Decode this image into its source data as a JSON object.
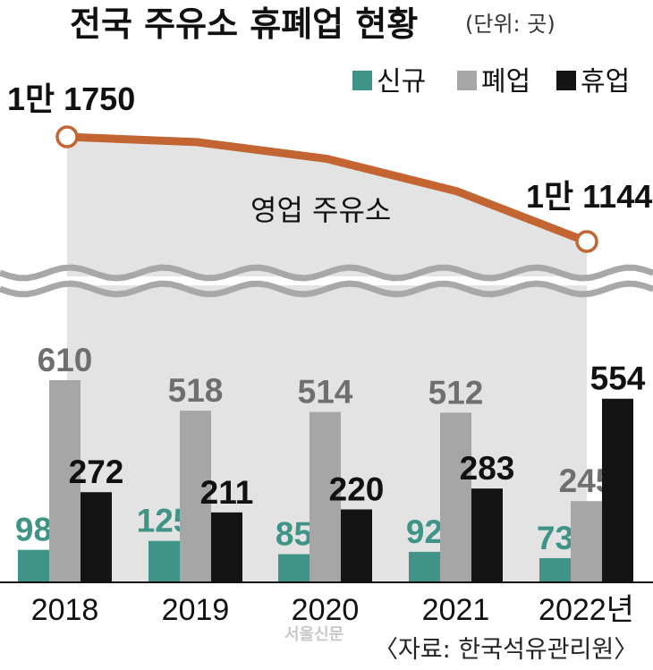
{
  "title": "전국 주유소 휴폐업 현황",
  "unit": "(단위: 곳)",
  "colors": {
    "new": "#3f9487",
    "closed": "#a6a6a6",
    "suspended": "#141414",
    "line": "#c26533",
    "area": "#e3e3e3"
  },
  "legend": [
    "신규",
    "폐업",
    "휴업"
  ],
  "line_label": "영업 주유소",
  "line_start_label": "1만 1750",
  "line_end_label": "1만 1144",
  "year_suffix": "년",
  "source": "〈자료: 한국석유관리원〉",
  "watermark": "서울신문",
  "chart_data": [
    {
      "type": "line",
      "x": [
        "2018",
        "2019",
        "2020",
        "2021",
        "2022"
      ],
      "series": [
        {
          "name": "영업 주유소",
          "values": [
            11750,
            null,
            null,
            null,
            11144
          ]
        }
      ]
    },
    {
      "type": "bar",
      "categories": [
        "2018",
        "2019",
        "2020",
        "2021",
        "2022"
      ],
      "series": [
        {
          "name": "신규",
          "values": [
            98,
            125,
            85,
            92,
            73
          ]
        },
        {
          "name": "폐업",
          "values": [
            610,
            518,
            514,
            512,
            245
          ]
        },
        {
          "name": "휴업",
          "values": [
            272,
            211,
            220,
            283,
            554
          ]
        }
      ],
      "ylim": [
        0,
        650
      ]
    }
  ]
}
